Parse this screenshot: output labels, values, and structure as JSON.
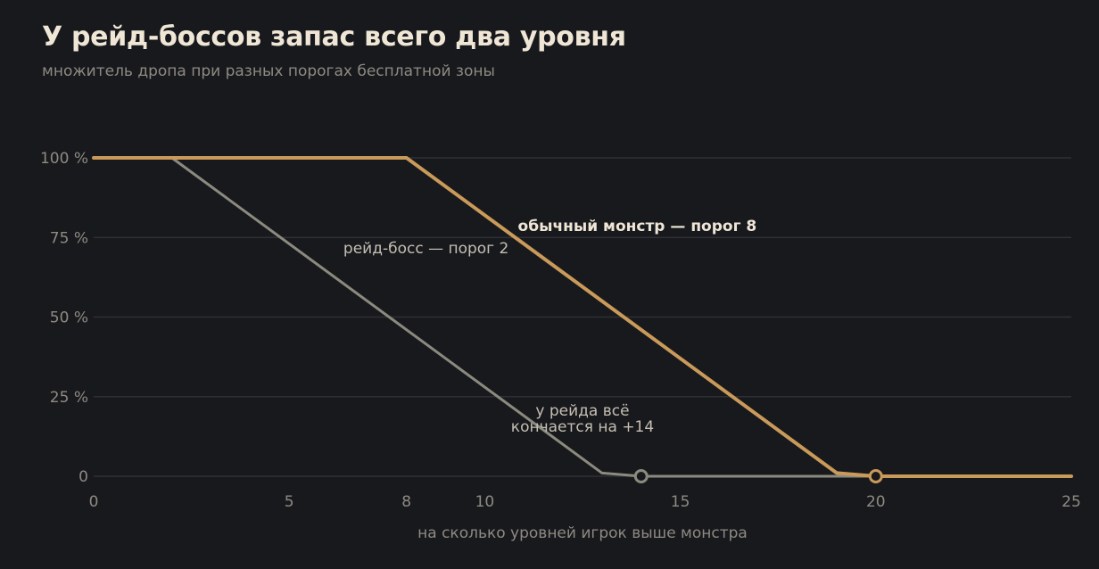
{
  "title": "У рейд-боссов запас всего два уровня",
  "subtitle": "множитель дропа при разных порогах бесплатной зоны",
  "chart_data": {
    "type": "line",
    "title": "У рейд-боссов запас всего два уровня",
    "subtitle": "множитель дропа при разных порогах бесплатной зоны",
    "xlabel": "на сколько уровней игрок выше монстра",
    "ylabel": "",
    "xlim": [
      0,
      25
    ],
    "ylim": [
      0,
      100
    ],
    "x_ticks": [
      0,
      5,
      8,
      10,
      15,
      20,
      25
    ],
    "y_ticks": [
      0,
      25,
      50,
      75,
      100
    ],
    "y_tick_labels": [
      "0",
      "25 %",
      "50 %",
      "75 %",
      "100 %"
    ],
    "grid": true,
    "series": [
      {
        "color": "#8b8a7e",
        "points": [
          [
            0,
            100
          ],
          [
            2,
            100
          ],
          [
            13,
            1
          ],
          [
            14,
            0
          ],
          [
            25,
            0
          ]
        ],
        "marker": [
          14,
          0
        ]
      },
      {
        "color": "#c99a59",
        "points": [
          [
            0,
            100
          ],
          [
            8,
            100
          ],
          [
            19,
            1
          ],
          [
            20,
            0
          ],
          [
            25,
            0
          ]
        ],
        "marker": [
          20,
          0
        ]
      }
    ],
    "annotations": [
      {
        "text": "обычный монстр — порог 8",
        "bold": true,
        "color": "#efe6d6",
        "at": [
          13.9,
          77
        ]
      },
      {
        "text": "рейд-босс — порог 2",
        "bold": false,
        "color": "#c5bfb3",
        "at": [
          8.5,
          70
        ]
      },
      {
        "text": "у рейда всё",
        "bold": false,
        "color": "#c5bfb3",
        "at": [
          12.5,
          19
        ]
      },
      {
        "text": "кончается на +14",
        "bold": false,
        "color": "#c5bfb3",
        "at": [
          12.5,
          14
        ]
      }
    ]
  }
}
